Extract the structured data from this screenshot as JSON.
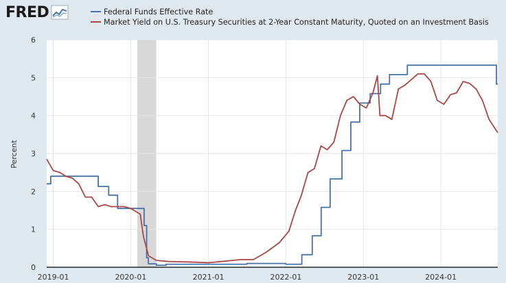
{
  "brand": {
    "logo_text": "FRED"
  },
  "chart_data": {
    "type": "line",
    "title": "",
    "xlabel": "",
    "ylabel": "Percent",
    "ylim": [
      0,
      6
    ],
    "y_ticks": [
      0,
      1,
      2,
      3,
      4,
      5,
      6
    ],
    "x_range": [
      "2018-12-01",
      "2024-09-25"
    ],
    "x_ticks": [
      "2019-01",
      "2020-01",
      "2021-01",
      "2022-01",
      "2023-01",
      "2024-01"
    ],
    "grid": true,
    "legend_position": "top-left",
    "recession_shading": {
      "start": "2020-02-01",
      "end": "2020-04-30",
      "color": "#d8d8d8"
    },
    "series": [
      {
        "name": "Federal Funds Effective Rate",
        "color": "#4572a7",
        "step": true,
        "points": [
          [
            "2018-12-01",
            2.2
          ],
          [
            "2018-12-20",
            2.4
          ],
          [
            "2019-08-01",
            2.13
          ],
          [
            "2019-09-19",
            1.9
          ],
          [
            "2019-10-31",
            1.55
          ],
          [
            "2020-03-04",
            1.1
          ],
          [
            "2020-03-16",
            0.25
          ],
          [
            "2020-03-24",
            0.09
          ],
          [
            "2020-05-01",
            0.05
          ],
          [
            "2020-06-15",
            0.08
          ],
          [
            "2021-07-01",
            0.1
          ],
          [
            "2021-12-31",
            0.08
          ],
          [
            "2022-03-17",
            0.33
          ],
          [
            "2022-05-05",
            0.83
          ],
          [
            "2022-06-16",
            1.58
          ],
          [
            "2022-07-28",
            2.33
          ],
          [
            "2022-09-22",
            3.08
          ],
          [
            "2022-11-03",
            3.83
          ],
          [
            "2022-12-15",
            4.33
          ],
          [
            "2023-02-02",
            4.58
          ],
          [
            "2023-03-23",
            4.83
          ],
          [
            "2023-05-04",
            5.08
          ],
          [
            "2023-07-27",
            5.33
          ],
          [
            "2024-09-19",
            4.83
          ],
          [
            "2024-09-25",
            4.83
          ]
        ]
      },
      {
        "name": "Market Yield on U.S. Treasury Securities at 2-Year Constant Maturity, Quoted on an Investment Basis",
        "color": "#aa4643",
        "step": false,
        "points": [
          [
            "2018-12-01",
            2.85
          ],
          [
            "2019-01-01",
            2.55
          ],
          [
            "2019-02-01",
            2.5
          ],
          [
            "2019-03-01",
            2.4
          ],
          [
            "2019-04-01",
            2.35
          ],
          [
            "2019-05-01",
            2.2
          ],
          [
            "2019-06-01",
            1.85
          ],
          [
            "2019-07-01",
            1.85
          ],
          [
            "2019-08-01",
            1.6
          ],
          [
            "2019-09-01",
            1.65
          ],
          [
            "2019-10-01",
            1.6
          ],
          [
            "2019-11-01",
            1.6
          ],
          [
            "2019-12-01",
            1.6
          ],
          [
            "2020-01-01",
            1.55
          ],
          [
            "2020-02-15",
            1.4
          ],
          [
            "2020-03-01",
            0.8
          ],
          [
            "2020-03-25",
            0.3
          ],
          [
            "2020-05-01",
            0.18
          ],
          [
            "2020-07-01",
            0.15
          ],
          [
            "2020-10-01",
            0.14
          ],
          [
            "2021-01-01",
            0.12
          ],
          [
            "2021-03-01",
            0.15
          ],
          [
            "2021-06-01",
            0.2
          ],
          [
            "2021-08-01",
            0.2
          ],
          [
            "2021-10-01",
            0.4
          ],
          [
            "2021-12-01",
            0.65
          ],
          [
            "2022-01-15",
            0.95
          ],
          [
            "2022-02-15",
            1.5
          ],
          [
            "2022-03-15",
            1.9
          ],
          [
            "2022-04-15",
            2.5
          ],
          [
            "2022-05-15",
            2.6
          ],
          [
            "2022-06-15",
            3.2
          ],
          [
            "2022-07-15",
            3.1
          ],
          [
            "2022-08-15",
            3.3
          ],
          [
            "2022-09-15",
            4.0
          ],
          [
            "2022-10-15",
            4.4
          ],
          [
            "2022-11-15",
            4.5
          ],
          [
            "2022-12-15",
            4.3
          ],
          [
            "2023-01-15",
            4.2
          ],
          [
            "2023-02-15",
            4.6
          ],
          [
            "2023-03-08",
            5.05
          ],
          [
            "2023-03-20",
            4.0
          ],
          [
            "2023-04-15",
            4.0
          ],
          [
            "2023-05-15",
            3.9
          ],
          [
            "2023-06-15",
            4.7
          ],
          [
            "2023-07-15",
            4.8
          ],
          [
            "2023-08-15",
            4.95
          ],
          [
            "2023-09-15",
            5.1
          ],
          [
            "2023-10-15",
            5.1
          ],
          [
            "2023-11-15",
            4.9
          ],
          [
            "2023-12-15",
            4.4
          ],
          [
            "2024-01-15",
            4.3
          ],
          [
            "2024-02-15",
            4.55
          ],
          [
            "2024-03-15",
            4.6
          ],
          [
            "2024-04-15",
            4.9
          ],
          [
            "2024-05-15",
            4.85
          ],
          [
            "2024-06-15",
            4.7
          ],
          [
            "2024-07-15",
            4.4
          ],
          [
            "2024-08-15",
            3.9
          ],
          [
            "2024-09-25",
            3.55
          ]
        ]
      }
    ]
  }
}
